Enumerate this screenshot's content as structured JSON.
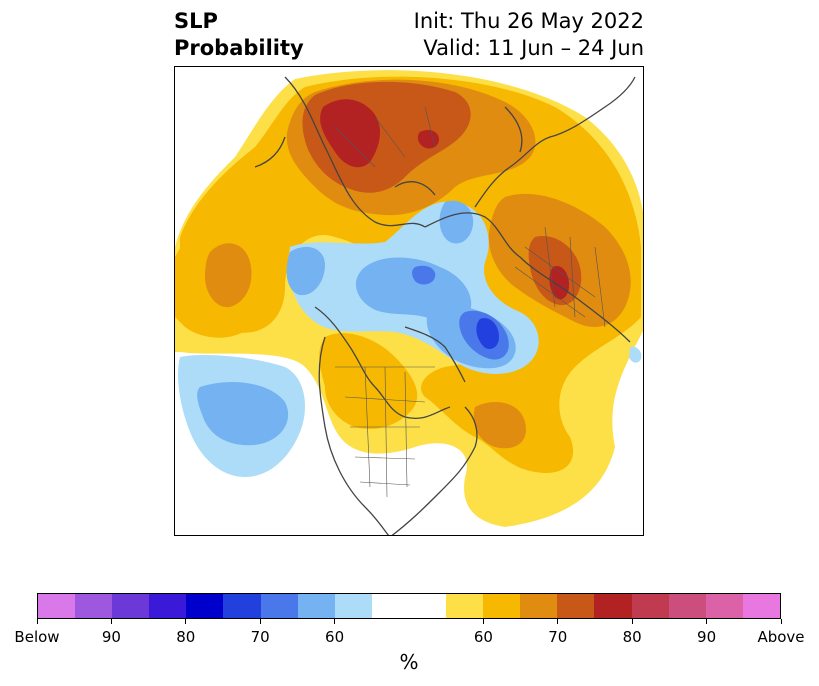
{
  "title": {
    "left_line1": "SLP",
    "left_line2": "Probability",
    "right_line1": "Init: Thu 26 May 2022",
    "right_line2": "Valid: 11 Jun – 24 Jun"
  },
  "colorbar": {
    "unit_label": "%",
    "colors": [
      "#d978e8",
      "#9e58e0",
      "#6c38d8",
      "#3a1ad8",
      "#0000cc",
      "#2240dd",
      "#4a78ea",
      "#74b2f2",
      "#acdcf8",
      "#ffffff",
      "#ffffff",
      "#fde047",
      "#f6b800",
      "#e08c10",
      "#c85818",
      "#b22222",
      "#c03a50",
      "#cc4e7c",
      "#dc62a8",
      "#e878e0"
    ],
    "tick_labels": [
      "Below",
      "90",
      "80",
      "70",
      "60",
      "60",
      "70",
      "80",
      "90",
      "Above"
    ]
  },
  "map": {
    "land_edge_color": "#444444",
    "above_colors": {
      "p60": "#fde047",
      "p65": "#f6b800",
      "p70": "#e08c10",
      "p75": "#c85818",
      "p80": "#b22222"
    },
    "below_colors": {
      "p60": "#acdcf8",
      "p65": "#74b2f2",
      "p70": "#4a78ea",
      "p75": "#2240dd"
    }
  }
}
